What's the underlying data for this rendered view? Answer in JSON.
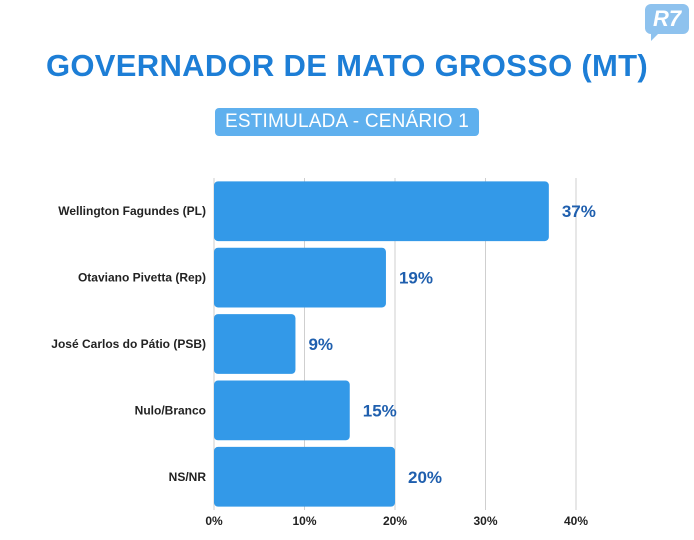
{
  "brand": {
    "logo_text": "R7",
    "logo_color": "#8ec2ee"
  },
  "header": {
    "title": "GOVERNADOR DE MATO GROSSO (MT)",
    "subtitle": "ESTIMULADA - CENÁRIO 1"
  },
  "colors": {
    "bar": "#3399e8",
    "value_label": "#1f5fae",
    "grid": "#cfcfcf",
    "title": "#1d7ed6"
  },
  "chart_data": {
    "type": "bar",
    "orientation": "horizontal",
    "title": "GOVERNADOR DE MATO GROSSO (MT)",
    "subtitle": "ESTIMULADA - CENÁRIO 1",
    "categories": [
      "Wellington Fagundes (PL)",
      "Otaviano Pivetta (Rep)",
      "José Carlos do Pátio (PSB)",
      "Nulo/Branco",
      "NS/NR"
    ],
    "values": [
      37,
      19,
      9,
      15,
      20
    ],
    "value_labels": [
      "37%",
      "19%",
      "9%",
      "15%",
      "20%"
    ],
    "xlim": [
      0,
      40
    ],
    "xticks": [
      "0%",
      "10%",
      "20%",
      "30%",
      "40%"
    ],
    "grid": "vertical",
    "legend": "none"
  }
}
